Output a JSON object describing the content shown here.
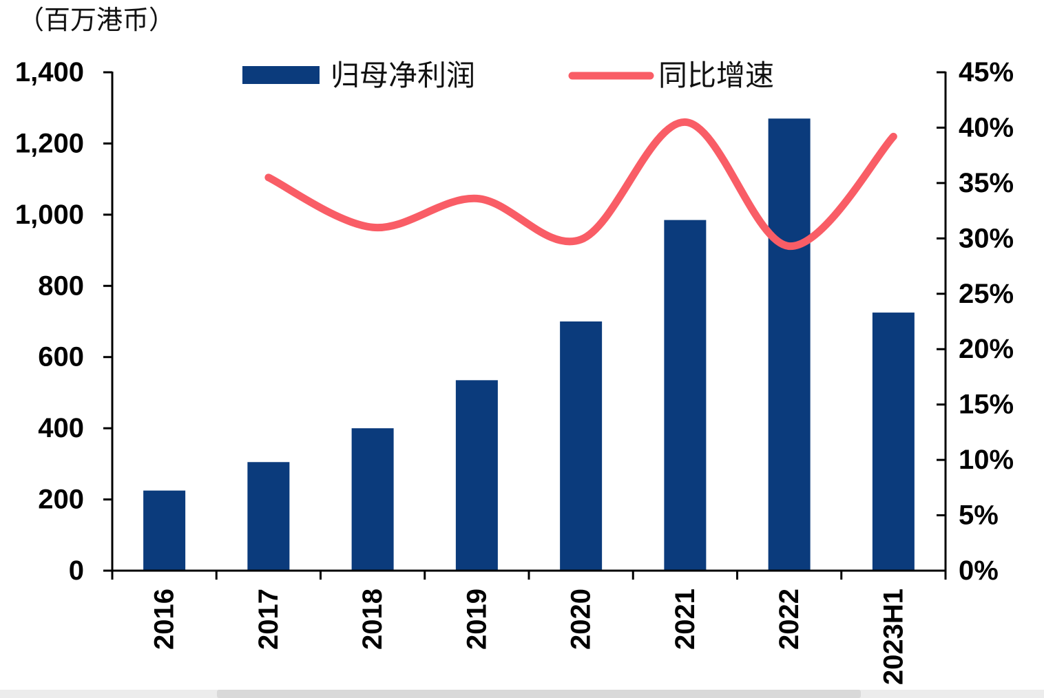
{
  "unit_label": "（百万港币）",
  "legend": {
    "bar_label": "归母净利润",
    "line_label": "同比增速"
  },
  "colors": {
    "bar": "#0b3b7c",
    "line": "#f95d66",
    "axis": "#000000",
    "text": "#000000"
  },
  "chart_data": {
    "type": "bar",
    "subtype": "bar+line combo, dual axis",
    "title": "",
    "unit": "百万港币",
    "categories": [
      "2016",
      "2017",
      "2018",
      "2019",
      "2020",
      "2021",
      "2022",
      "2023H1"
    ],
    "series": [
      {
        "name": "归母净利润",
        "type": "bar",
        "axis": "left",
        "values": [
          225,
          305,
          400,
          535,
          700,
          985,
          1270,
          725
        ]
      },
      {
        "name": "同比增速",
        "type": "line",
        "axis": "right",
        "unit": "%",
        "values": [
          null,
          35.5,
          31.0,
          33.6,
          29.9,
          40.5,
          29.3,
          39.2
        ]
      }
    ],
    "left_axis": {
      "min": 0,
      "max": 1400,
      "step": 200,
      "tick_labels": [
        "0",
        "200",
        "400",
        "600",
        "800",
        "1,000",
        "1,200",
        "1,400"
      ]
    },
    "right_axis": {
      "min": 0,
      "max": 45,
      "step": 5,
      "tick_labels": [
        "0%",
        "5%",
        "10%",
        "15%",
        "20%",
        "25%",
        "30%",
        "35%",
        "40%",
        "45%"
      ]
    },
    "grid": false,
    "legend_position": "top-center"
  }
}
